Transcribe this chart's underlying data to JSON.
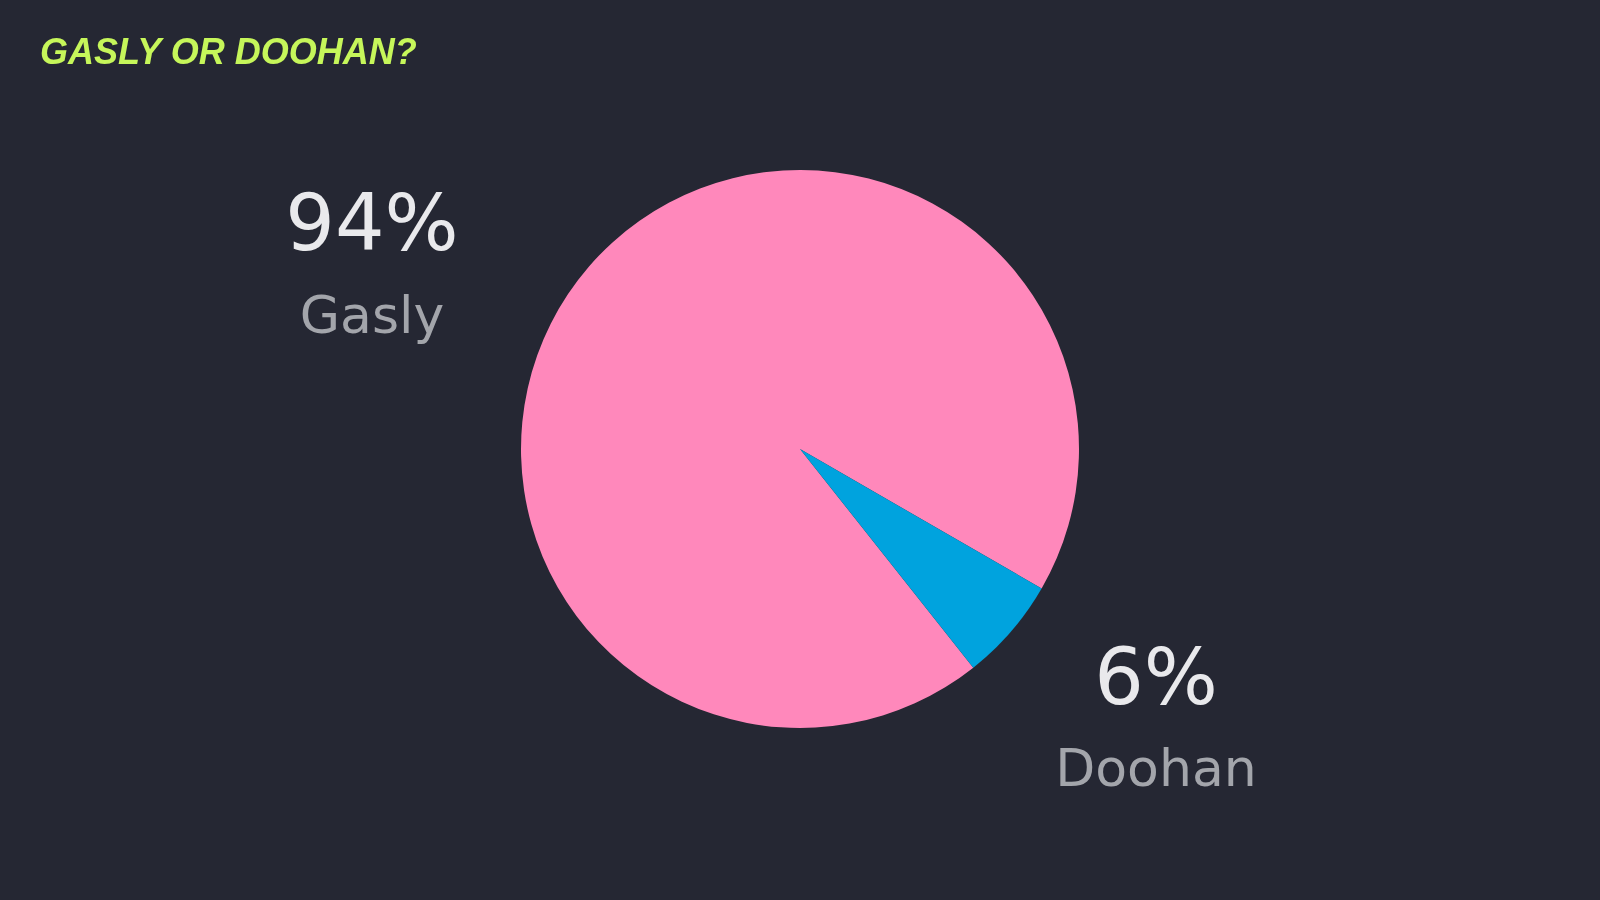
{
  "chart_data": {
    "type": "pie",
    "title": "GASLY OR DOOHAN?",
    "categories": [
      "Gasly",
      "Doohan"
    ],
    "values": [
      94,
      6
    ],
    "colors": [
      "#ff88bb",
      "#00a3de"
    ],
    "value_labels": [
      "94%",
      "6%"
    ]
  }
}
